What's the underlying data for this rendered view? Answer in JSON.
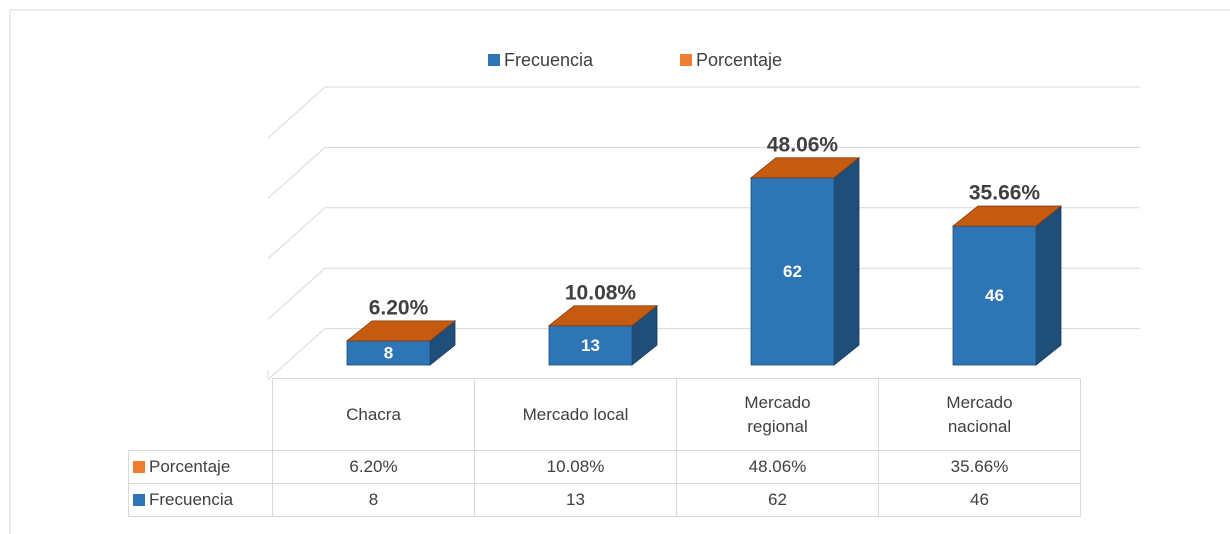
{
  "chart_data": {
    "type": "bar3d",
    "categories": [
      "Chacra",
      "Mercado local",
      "Mercado regional",
      "Mercado nacional"
    ],
    "series": [
      {
        "name": "Frecuencia",
        "color": "#2e75b6",
        "values": [
          8,
          13,
          62,
          46
        ]
      },
      {
        "name": "Porcentaje",
        "color": "#ed7d31",
        "values": [
          6.2,
          10.08,
          48.06,
          35.66
        ],
        "value_labels": [
          "6.20%",
          "10.08%",
          "48.06%",
          "35.66%"
        ]
      }
    ],
    "ylim": [
      0,
      100
    ],
    "yticks": [
      20,
      40,
      60,
      80,
      100
    ],
    "grid": true,
    "legend": "top",
    "data_table": true
  }
}
